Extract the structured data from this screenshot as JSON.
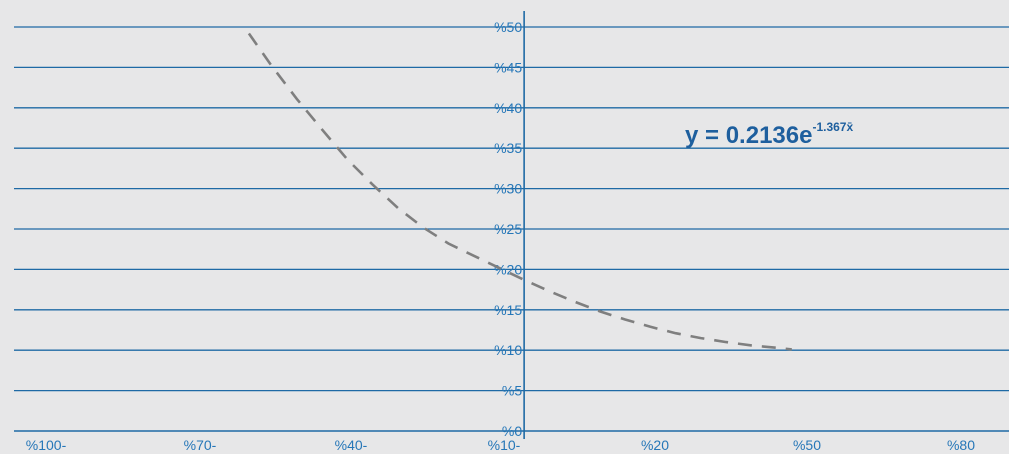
{
  "chart_data": {
    "type": "line",
    "title": "",
    "xlabel": "",
    "ylabel": "",
    "x_tick_labels": [
      "%100-",
      "%70-",
      "%40-",
      "%10-",
      "%20",
      "%50",
      "%80"
    ],
    "x_tick_values": [
      -100,
      -70,
      -40,
      -10,
      20,
      50,
      80
    ],
    "y_tick_labels": [
      "%0",
      "%5",
      "%10",
      "%15",
      "%20",
      "%25",
      "%30",
      "%35",
      "%40",
      "%45",
      "%50"
    ],
    "y_tick_values": [
      0,
      5,
      10,
      15,
      20,
      25,
      30,
      35,
      40,
      45,
      50
    ],
    "xlim": [
      -101,
      96
    ],
    "ylim": [
      0,
      52
    ],
    "grid": true,
    "series": [
      {
        "style": "dashed",
        "color": "#7f7f7f",
        "x": [
          -54.5,
          -50,
          -45,
          -40,
          -35,
          -30,
          -25,
          -20,
          -15,
          -10,
          -5,
          0,
          5,
          10,
          15,
          20,
          25,
          30,
          35,
          40,
          45,
          50,
          53
        ],
        "y": [
          49.2,
          45.2,
          41.1,
          37.3,
          33.6,
          30.5,
          27.6,
          25.2,
          23.2,
          21.7,
          20.2,
          18.7,
          17.3,
          16.0,
          14.8,
          13.8,
          12.9,
          12.1,
          11.5,
          11.0,
          10.6,
          10.3,
          10.1
        ]
      }
    ],
    "annotation": {
      "text": "y = 0.2136e",
      "superscript": "-1.367x̄"
    }
  }
}
